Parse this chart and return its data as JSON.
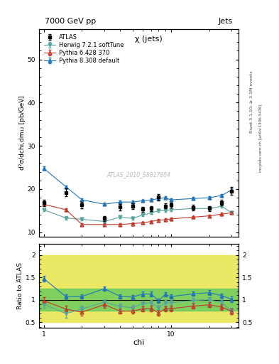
{
  "title_top": "7000 GeV pp",
  "title_right": "Jets",
  "plot_title": "χ (jets)",
  "watermark": "ATLAS_2010_S8817804",
  "rivet_label": "Rivet 3.1.10; ≥ 3.1M events",
  "arxiv_label": "mcplots.cern.ch [arXiv:1306.3436]",
  "ylabel_main": "d²σ/dchi,dm₁₂ [pb/GeV]",
  "ylabel_ratio": "Ratio to ATLAS",
  "xlabel": "chi",
  "ylim_main": [
    9,
    57
  ],
  "ylim_ratio": [
    0.38,
    2.25
  ],
  "chi_values": [
    1.0,
    1.5,
    2.0,
    3.0,
    4.0,
    5.0,
    6.0,
    7.0,
    8.0,
    9.0,
    10.0,
    15.0,
    20.0,
    25.0,
    30.0
  ],
  "atlas_y": [
    16.8,
    19.2,
    16.3,
    13.2,
    15.8,
    16.0,
    15.3,
    15.5,
    18.1,
    16.1,
    16.3,
    15.7,
    15.5,
    16.9,
    19.5
  ],
  "atlas_yerr": [
    0.8,
    0.9,
    0.7,
    0.6,
    0.7,
    0.7,
    0.6,
    0.6,
    0.7,
    0.6,
    0.6,
    0.6,
    0.6,
    0.7,
    0.9
  ],
  "herwig_y": [
    15.2,
    13.3,
    13.0,
    12.5,
    13.5,
    13.2,
    14.0,
    14.5,
    15.0,
    15.0,
    15.2,
    15.5,
    15.5,
    16.0,
    14.5
  ],
  "herwig_yerr": [
    0.3,
    0.4,
    0.3,
    0.3,
    0.3,
    0.3,
    0.3,
    0.3,
    0.3,
    0.3,
    0.3,
    0.3,
    0.3,
    0.3,
    0.3
  ],
  "pythia6_y": [
    16.5,
    15.2,
    11.8,
    11.8,
    11.8,
    12.0,
    12.2,
    12.5,
    12.8,
    12.9,
    13.1,
    13.5,
    13.8,
    14.2,
    14.5
  ],
  "pythia6_yerr": [
    0.3,
    0.3,
    0.3,
    0.3,
    0.3,
    0.3,
    0.3,
    0.3,
    0.3,
    0.3,
    0.3,
    0.3,
    0.3,
    0.3,
    0.3
  ],
  "pythia8_y": [
    24.8,
    20.5,
    17.5,
    16.5,
    17.0,
    17.0,
    17.3,
    17.5,
    17.8,
    18.0,
    17.5,
    17.8,
    18.0,
    18.5,
    19.8
  ],
  "pythia8_yerr": [
    0.4,
    0.3,
    0.3,
    0.3,
    0.3,
    0.3,
    0.3,
    0.3,
    0.3,
    0.3,
    0.3,
    0.3,
    0.3,
    0.3,
    0.3
  ],
  "herwig_color": "#5ba3a0",
  "pythia6_color": "#c0392b",
  "pythia8_color": "#2475b8",
  "atlas_color": "#000000",
  "band_yellow": [
    0.5,
    2.0
  ],
  "band_green_inner": [
    0.75,
    1.25
  ],
  "ratio_herwig": [
    0.905,
    0.693,
    0.798,
    0.947,
    0.854,
    0.825,
    0.915,
    0.935,
    0.829,
    0.932,
    0.933,
    0.987,
    1.0,
    0.947,
    0.744
  ],
  "ratio_pythia6": [
    0.982,
    0.792,
    0.724,
    0.894,
    0.747,
    0.75,
    0.797,
    0.806,
    0.707,
    0.801,
    0.804,
    0.86,
    0.89,
    0.84,
    0.744
  ],
  "ratio_pythia8": [
    1.476,
    1.068,
    1.074,
    1.25,
    1.076,
    1.063,
    1.131,
    1.129,
    0.983,
    1.118,
    1.074,
    1.134,
    1.161,
    1.095,
    1.015
  ],
  "ratio_herwig_err": [
    0.08,
    0.09,
    0.07,
    0.07,
    0.06,
    0.06,
    0.06,
    0.06,
    0.06,
    0.06,
    0.06,
    0.06,
    0.06,
    0.06,
    0.07
  ],
  "ratio_pythia6_err": [
    0.07,
    0.07,
    0.07,
    0.07,
    0.06,
    0.06,
    0.06,
    0.06,
    0.06,
    0.06,
    0.06,
    0.06,
    0.06,
    0.06,
    0.06
  ],
  "ratio_pythia8_err": [
    0.06,
    0.06,
    0.05,
    0.05,
    0.05,
    0.05,
    0.05,
    0.05,
    0.05,
    0.05,
    0.05,
    0.05,
    0.05,
    0.05,
    0.06
  ]
}
